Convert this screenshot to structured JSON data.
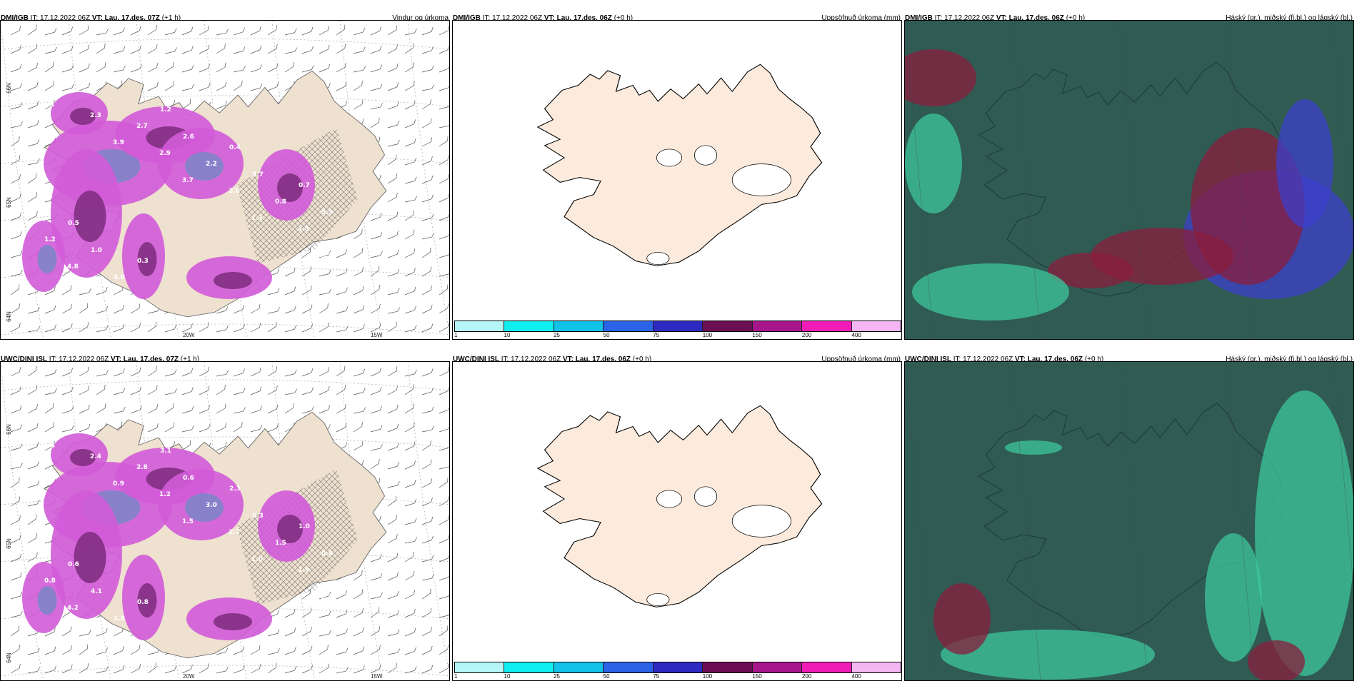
{
  "colors": {
    "land": "#efe1d0",
    "land_map": "#fcebdd",
    "precip": "#d25bd8",
    "precip_dark": "#7d2c7e",
    "precip_blue": "#7a86c8",
    "cloud_high": "#2f5b53",
    "cloud_mid": "#3ec59a",
    "cloud_low": "#3d3fc9",
    "cloud_red": "#8a1d3d"
  },
  "panels": [
    {
      "source": "DMI/IGB",
      "it_label": "IT: 17.12.2022 06Z",
      "vt_label": "VT: Lau. 17.des. 07Z",
      "offset": "(+1 h)",
      "title": "Vindur og úrkoma",
      "lat_labels": [
        "66N",
        "65N",
        "64N"
      ],
      "lon_labels": [
        "20W",
        "15W"
      ],
      "values": [
        "1.1",
        "3.9",
        "3.7",
        "1.3",
        "3.7",
        "2.3",
        "2.9",
        "3.8",
        "1.8",
        "4.8",
        "2.7",
        "2.2",
        "0.8",
        "1.2",
        "4.0",
        "2.6",
        "3.7",
        "5.5",
        "1.0",
        "1.2",
        "0.4",
        "0.7",
        "0.5",
        "0.3"
      ]
    },
    {
      "source": "DMI/IGB",
      "it_label": "IT: 17.12.2022 06Z",
      "vt_label": "VT: Lau. 17.des. 06Z",
      "offset": "(+0 h)",
      "title": "Uppsöfnuð úrkoma (mm)",
      "colorbar": [
        "#b4f6f8",
        "#11eef0",
        "#12c2e8",
        "#2a63e6",
        "#2c2ac0",
        "#6c0e54",
        "#a8168c",
        "#f01cb7",
        "#f4b6f2"
      ],
      "ticks": [
        "1",
        "10",
        "25",
        "50",
        "75",
        "100",
        "150",
        "200",
        "400"
      ]
    },
    {
      "source": "DMI/IGB",
      "it_label": "IT: 17.12.2022 06Z",
      "vt_label": "VT: Lau. 17.des. 06Z",
      "offset": "(+0 h)",
      "title": "Háský (gr.), miðský (fj.bl.) og lágský (bl.)"
    },
    {
      "source": "UWC/DINI ISL",
      "it_label": "IT: 17.12.2022 06Z",
      "vt_label": "VT: Lau. 17.des. 07Z",
      "offset": "(+1 h)",
      "title": "",
      "lat_labels": [
        "66N",
        "65N",
        "64N"
      ],
      "lon_labels": [
        "20W",
        "15W"
      ],
      "values": [
        "0.4",
        "0.9",
        "1.5",
        "1.0",
        "1.3",
        "2.4",
        "1.2",
        "2.7",
        "1.9",
        "4.2",
        "2.8",
        "3.0",
        "1.5",
        "0.8",
        "1.3",
        "0.6",
        "0.3",
        "0.4",
        "4.1",
        "3.1",
        "2.3",
        "1.0",
        "0.6",
        "0.8"
      ]
    },
    {
      "source": "UWC/DINI ISL",
      "it_label": "IT: 17.12.2022 06Z",
      "vt_label": "VT: Lau. 17.des. 06Z",
      "offset": "(+0 h)",
      "title": "Uppsöfnuð úrkoma (mm)",
      "colorbar": [
        "#b4f6f8",
        "#11eef0",
        "#12c2e8",
        "#2a63e6",
        "#2c2ac0",
        "#6c0e54",
        "#a8168c",
        "#f01cb7",
        "#f4b6f2"
      ],
      "ticks": [
        "1",
        "10",
        "25",
        "50",
        "75",
        "100",
        "150",
        "200",
        "400"
      ]
    },
    {
      "source": "UWC/DINI ISL",
      "it_label": "IT: 17.12.2022 06Z",
      "vt_label": "VT: Lau. 17.des. 06Z",
      "offset": "(+0 h)",
      "title": "Háský (gr.), miðský (fj.bl.) og lágský (bl.)"
    }
  ]
}
